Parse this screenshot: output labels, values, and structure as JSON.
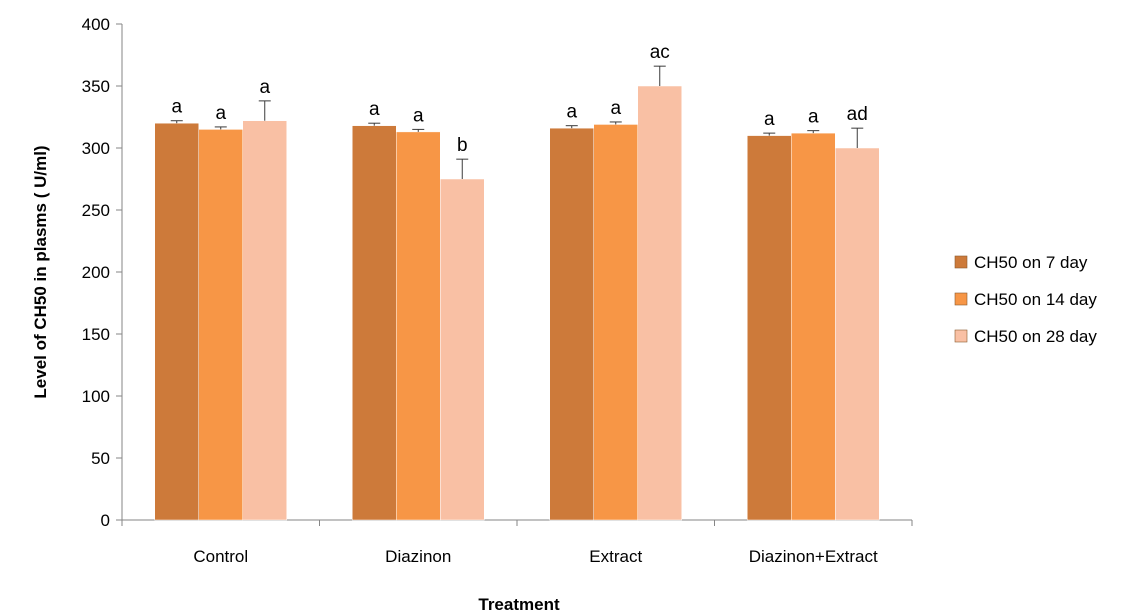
{
  "chart_data": {
    "type": "bar",
    "title": "",
    "xlabel": "Treatment",
    "ylabel": "Level of CH50 in plasms ( U/ml)",
    "ylim": [
      0,
      400
    ],
    "yticks": [
      0,
      50,
      100,
      150,
      200,
      250,
      300,
      350,
      400
    ],
    "grid": false,
    "legend_position": "right",
    "categories": [
      "Control",
      "Diazinon",
      "Extract",
      "Diazinon+Extract"
    ],
    "series": [
      {
        "name": "CH50 on 7 day",
        "color": "#CD7A3A",
        "values": [
          320,
          318,
          316,
          310
        ],
        "errors": [
          2,
          2,
          2,
          2
        ],
        "labels": [
          "a",
          "a",
          "a",
          "a"
        ]
      },
      {
        "name": "CH50 on 14 day",
        "color": "#F79646",
        "values": [
          315,
          313,
          319,
          312
        ],
        "errors": [
          2,
          2,
          2,
          2
        ],
        "labels": [
          "a",
          "a",
          "a",
          "a"
        ]
      },
      {
        "name": "CH50 on 28 day",
        "color": "#F9C0A4",
        "values": [
          322,
          275,
          350,
          300
        ],
        "errors": [
          16,
          16,
          16,
          16
        ],
        "labels": [
          "a",
          "b",
          "ac",
          "ad"
        ]
      }
    ]
  }
}
